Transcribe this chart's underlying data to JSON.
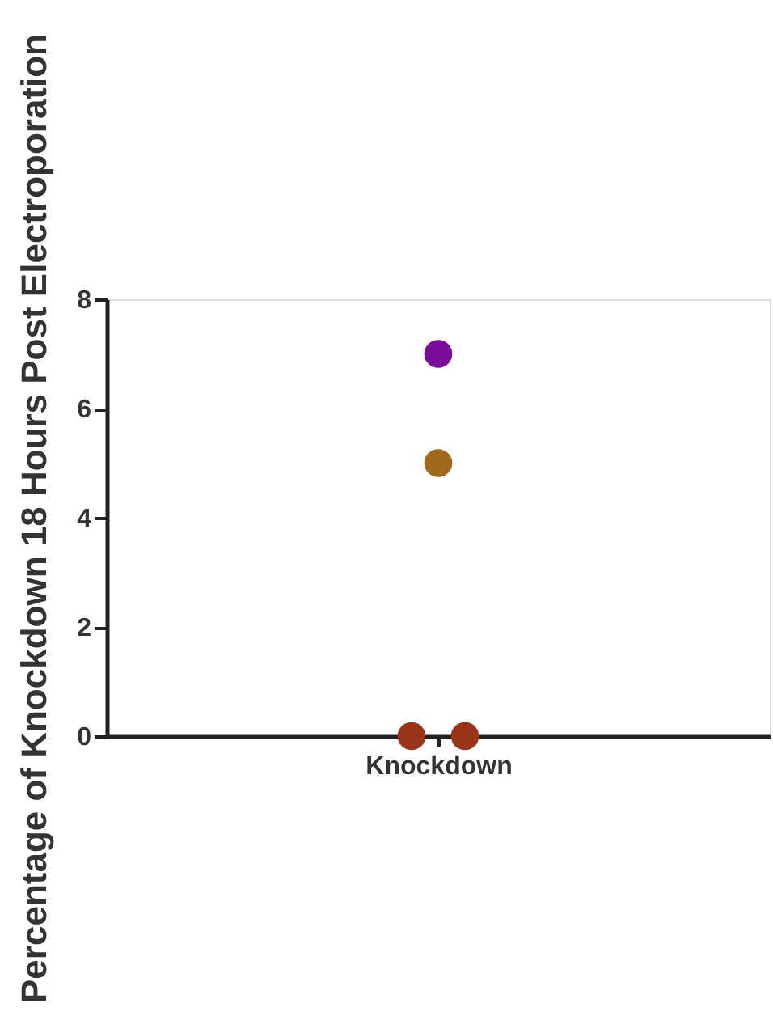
{
  "chart_data": {
    "type": "scatter",
    "ylabel": "Percentage of Knockdown 18 Hours  Post Electroporation",
    "categories": [
      "Knockdown"
    ],
    "ylim": [
      0,
      8
    ],
    "yticks": [
      0,
      2,
      4,
      6,
      8
    ],
    "grid": false,
    "marker": "circle",
    "series": [
      {
        "color": "#7a0c9c",
        "values": [
          7
        ]
      },
      {
        "color": "#a06a1e",
        "values": [
          5
        ]
      },
      {
        "color": "#9a3418",
        "values": [
          0,
          0
        ],
        "x": [
          "Knockdown",
          "Knockdown"
        ]
      }
    ]
  }
}
